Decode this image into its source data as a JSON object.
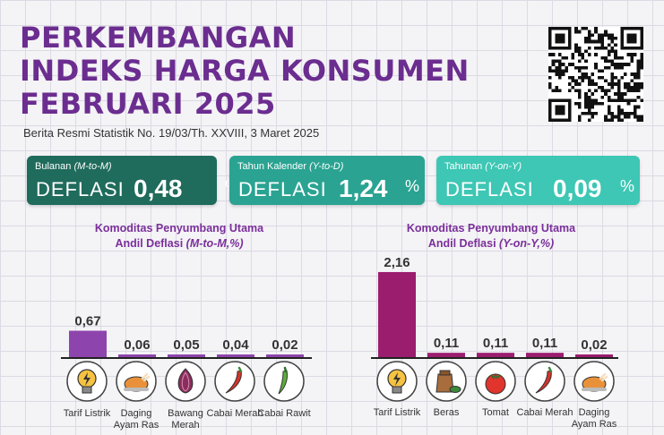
{
  "header": {
    "title_lines": [
      "PERKEMBANGAN",
      "INDEKS HARGA KONSUMEN",
      "FEBRUARI 2025"
    ],
    "subtitle": "Berita Resmi Statistik No. 19/03/Th. XXVIII, 3 Maret 2025"
  },
  "cards": [
    {
      "caption": "Bulanan",
      "caption_italic": "(M-to-M)",
      "label": "DEFLASI",
      "value": "0,48",
      "unit": "%",
      "color": "#1f6b5c"
    },
    {
      "caption": "Tahun Kalender",
      "caption_italic": "(Y-to-D)",
      "label": "DEFLASI",
      "value": "1,24",
      "unit": "%",
      "color": "#2aa392"
    },
    {
      "caption": "Tahunan",
      "caption_italic": "(Y-on-Y)",
      "label": "DEFLASI",
      "value": "0,09",
      "unit": "%",
      "color": "#3dc7b4"
    }
  ],
  "chart_data": [
    {
      "type": "bar",
      "title_line1": "Komoditas Penyumbang Utama",
      "title_line2": "Andil Deflasi",
      "title_italic": "(M-to-M,%)",
      "categories": [
        "Tarif Listrik",
        "Daging Ayam Ras",
        "Bawang Merah",
        "Cabai Merah",
        "Cabai Rawit"
      ],
      "values": [
        0.67,
        0.06,
        0.05,
        0.04,
        0.02
      ],
      "value_labels": [
        "0,67",
        "0,06",
        "0,05",
        "0,04",
        "0,02"
      ],
      "icons": [
        "lightbulb-icon",
        "chicken-icon",
        "onion-icon",
        "chili-icon",
        "green-chili-icon"
      ],
      "bar_color": "#8e44ad"
    },
    {
      "type": "bar",
      "title_line1": "Komoditas Penyumbang Utama",
      "title_line2": "Andil Deflasi",
      "title_italic": "(Y-on-Y,%)",
      "categories": [
        "Tarif Listrik",
        "Beras",
        "Tomat",
        "Cabai Merah",
        "Daging Ayam Ras"
      ],
      "values": [
        2.16,
        0.11,
        0.11,
        0.11,
        0.02
      ],
      "value_labels": [
        "2,16",
        "0,11",
        "0,11",
        "0,11",
        "0,02"
      ],
      "icons": [
        "lightbulb-icon",
        "rice-sack-icon",
        "tomato-icon",
        "chili-icon",
        "chicken-icon"
      ],
      "bar_color": "#9b1d6e"
    }
  ]
}
